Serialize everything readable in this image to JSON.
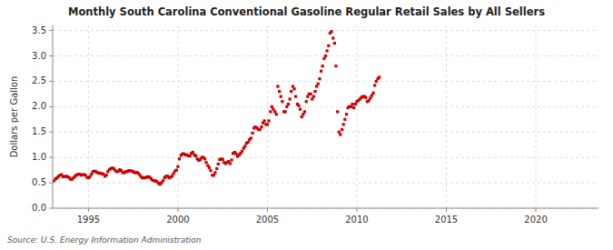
{
  "chart_data": {
    "type": "scatter",
    "title": "Monthly South Carolina Conventional Gasoline Regular Retail Sales by All Sellers",
    "ylabel": "Dollars per Gallon",
    "annotations": [
      "Source: U.S. Energy Information Administration"
    ],
    "color": "#CC0000",
    "marker": "square",
    "grid": true,
    "xlim": [
      1993.0,
      2023.5
    ],
    "ylim": [
      0.0,
      3.6
    ],
    "xticks": [
      1995,
      2000,
      2005,
      2010,
      2015,
      2020
    ],
    "yticks": [
      {
        "value": 0.0,
        "label": "0.0"
      },
      0.5,
      {
        "value": 1.0,
        "label": "1.0"
      },
      1.5,
      {
        "value": 2.0,
        "label": "2.0"
      },
      2.5,
      {
        "value": 3.0,
        "label": "3.0"
      },
      3.5
    ],
    "x": [
      1993.08,
      1993.17,
      1993.25,
      1993.33,
      1993.42,
      1993.5,
      1993.58,
      1993.67,
      1993.75,
      1993.83,
      1993.92,
      1994.0,
      1994.08,
      1994.17,
      1994.25,
      1994.33,
      1994.42,
      1994.5,
      1994.58,
      1994.67,
      1994.75,
      1994.83,
      1994.92,
      1995.0,
      1995.08,
      1995.17,
      1995.25,
      1995.33,
      1995.42,
      1995.5,
      1995.58,
      1995.67,
      1995.75,
      1995.83,
      1995.92,
      1996.0,
      1996.08,
      1996.17,
      1996.25,
      1996.33,
      1996.42,
      1996.5,
      1996.58,
      1996.67,
      1996.75,
      1996.83,
      1996.92,
      1997.0,
      1997.08,
      1997.17,
      1997.25,
      1997.33,
      1997.42,
      1997.5,
      1997.58,
      1997.67,
      1997.75,
      1997.83,
      1997.92,
      1998.0,
      1998.08,
      1998.17,
      1998.25,
      1998.33,
      1998.42,
      1998.5,
      1998.58,
      1998.67,
      1998.75,
      1998.83,
      1998.92,
      1999.0,
      1999.08,
      1999.17,
      1999.25,
      1999.33,
      1999.42,
      1999.5,
      1999.58,
      1999.67,
      1999.75,
      1999.83,
      1999.92,
      2000.0,
      2000.08,
      2000.17,
      2000.25,
      2000.33,
      2000.42,
      2000.5,
      2000.58,
      2000.67,
      2000.75,
      2000.83,
      2000.92,
      2001.0,
      2001.08,
      2001.17,
      2001.25,
      2001.33,
      2001.42,
      2001.5,
      2001.58,
      2001.67,
      2001.75,
      2001.83,
      2001.92,
      2002.0,
      2002.08,
      2002.17,
      2002.25,
      2002.33,
      2002.42,
      2002.5,
      2002.58,
      2002.67,
      2002.75,
      2002.83,
      2002.92,
      2003.0,
      2003.08,
      2003.17,
      2003.25,
      2003.33,
      2003.42,
      2003.5,
      2003.58,
      2003.67,
      2003.75,
      2003.83,
      2003.92,
      2004.0,
      2004.08,
      2004.17,
      2004.25,
      2004.33,
      2004.42,
      2004.5,
      2004.58,
      2004.67,
      2004.75,
      2004.83,
      2004.92,
      2005.0,
      2005.08,
      2005.17,
      2005.25,
      2005.33,
      2005.42,
      2005.5,
      2005.58,
      2005.67,
      2005.75,
      2005.83,
      2005.92,
      2006.0,
      2006.08,
      2006.17,
      2006.25,
      2006.33,
      2006.42,
      2006.5,
      2006.58,
      2006.67,
      2006.75,
      2006.83,
      2006.92,
      2007.0,
      2007.08,
      2007.17,
      2007.25,
      2007.33,
      2007.42,
      2007.5,
      2007.58,
      2007.67,
      2007.75,
      2007.83,
      2007.92,
      2008.0,
      2008.08,
      2008.17,
      2008.25,
      2008.33,
      2008.42,
      2008.5,
      2008.58,
      2008.67,
      2008.75,
      2008.83,
      2008.92,
      2009.0,
      2009.08,
      2009.17,
      2009.25,
      2009.33,
      2009.42,
      2009.5,
      2009.58,
      2009.67,
      2009.75,
      2009.83,
      2009.92,
      2010.0,
      2010.08,
      2010.17,
      2010.25,
      2010.33,
      2010.42,
      2010.5,
      2010.58,
      2010.67,
      2010.75,
      2010.83,
      2010.92,
      2011.0,
      2011.08,
      2011.17,
      2011.25
    ],
    "values": [
      0.54,
      0.58,
      0.6,
      0.63,
      0.65,
      0.66,
      0.62,
      0.62,
      0.63,
      0.62,
      0.6,
      0.57,
      0.57,
      0.6,
      0.63,
      0.65,
      0.67,
      0.67,
      0.65,
      0.66,
      0.66,
      0.65,
      0.61,
      0.6,
      0.62,
      0.67,
      0.72,
      0.73,
      0.72,
      0.7,
      0.69,
      0.69,
      0.68,
      0.67,
      0.63,
      0.65,
      0.72,
      0.76,
      0.78,
      0.79,
      0.78,
      0.74,
      0.72,
      0.73,
      0.76,
      0.74,
      0.7,
      0.7,
      0.72,
      0.72,
      0.74,
      0.74,
      0.73,
      0.72,
      0.7,
      0.7,
      0.7,
      0.67,
      0.63,
      0.6,
      0.6,
      0.6,
      0.61,
      0.62,
      0.61,
      0.58,
      0.55,
      0.54,
      0.54,
      0.52,
      0.49,
      0.47,
      0.5,
      0.54,
      0.6,
      0.63,
      0.63,
      0.6,
      0.61,
      0.63,
      0.68,
      0.73,
      0.75,
      0.82,
      0.97,
      1.04,
      1.07,
      1.07,
      1.05,
      1.05,
      1.03,
      1.03,
      1.08,
      1.1,
      1.05,
      1.03,
      0.97,
      0.94,
      0.96,
      1.0,
      1.0,
      0.97,
      0.9,
      0.84,
      0.8,
      0.74,
      0.65,
      0.65,
      0.7,
      0.78,
      0.87,
      0.96,
      0.97,
      0.96,
      0.9,
      0.88,
      0.9,
      0.92,
      0.88,
      0.95,
      1.08,
      1.1,
      1.07,
      1.02,
      1.05,
      1.08,
      1.12,
      1.18,
      1.22,
      1.28,
      1.3,
      1.35,
      1.38,
      1.48,
      1.58,
      1.6,
      1.58,
      1.55,
      1.55,
      1.6,
      1.68,
      1.72,
      1.65,
      1.65,
      1.72,
      1.9,
      2.0,
      1.95,
      1.9,
      1.85,
      2.4,
      2.3,
      2.2,
      2.1,
      1.9,
      1.9,
      2.0,
      2.05,
      2.15,
      2.3,
      2.4,
      2.35,
      2.2,
      2.05,
      2.02,
      1.95,
      1.8,
      1.85,
      1.9,
      2.1,
      2.2,
      2.25,
      2.25,
      2.15,
      2.2,
      2.3,
      2.4,
      2.45,
      2.55,
      2.7,
      2.8,
      2.95,
      3.0,
      3.1,
      3.2,
      3.45,
      3.48,
      3.35,
      3.25,
      2.8,
      1.9,
      1.5,
      1.45,
      1.55,
      1.65,
      1.75,
      1.85,
      1.98,
      2.0,
      2.0,
      2.05,
      1.98,
      2.05,
      2.1,
      2.12,
      2.15,
      2.18,
      2.2,
      2.2,
      2.18,
      2.1,
      2.12,
      2.17,
      2.22,
      2.27,
      2.42,
      2.5,
      2.55,
      2.58
    ]
  }
}
